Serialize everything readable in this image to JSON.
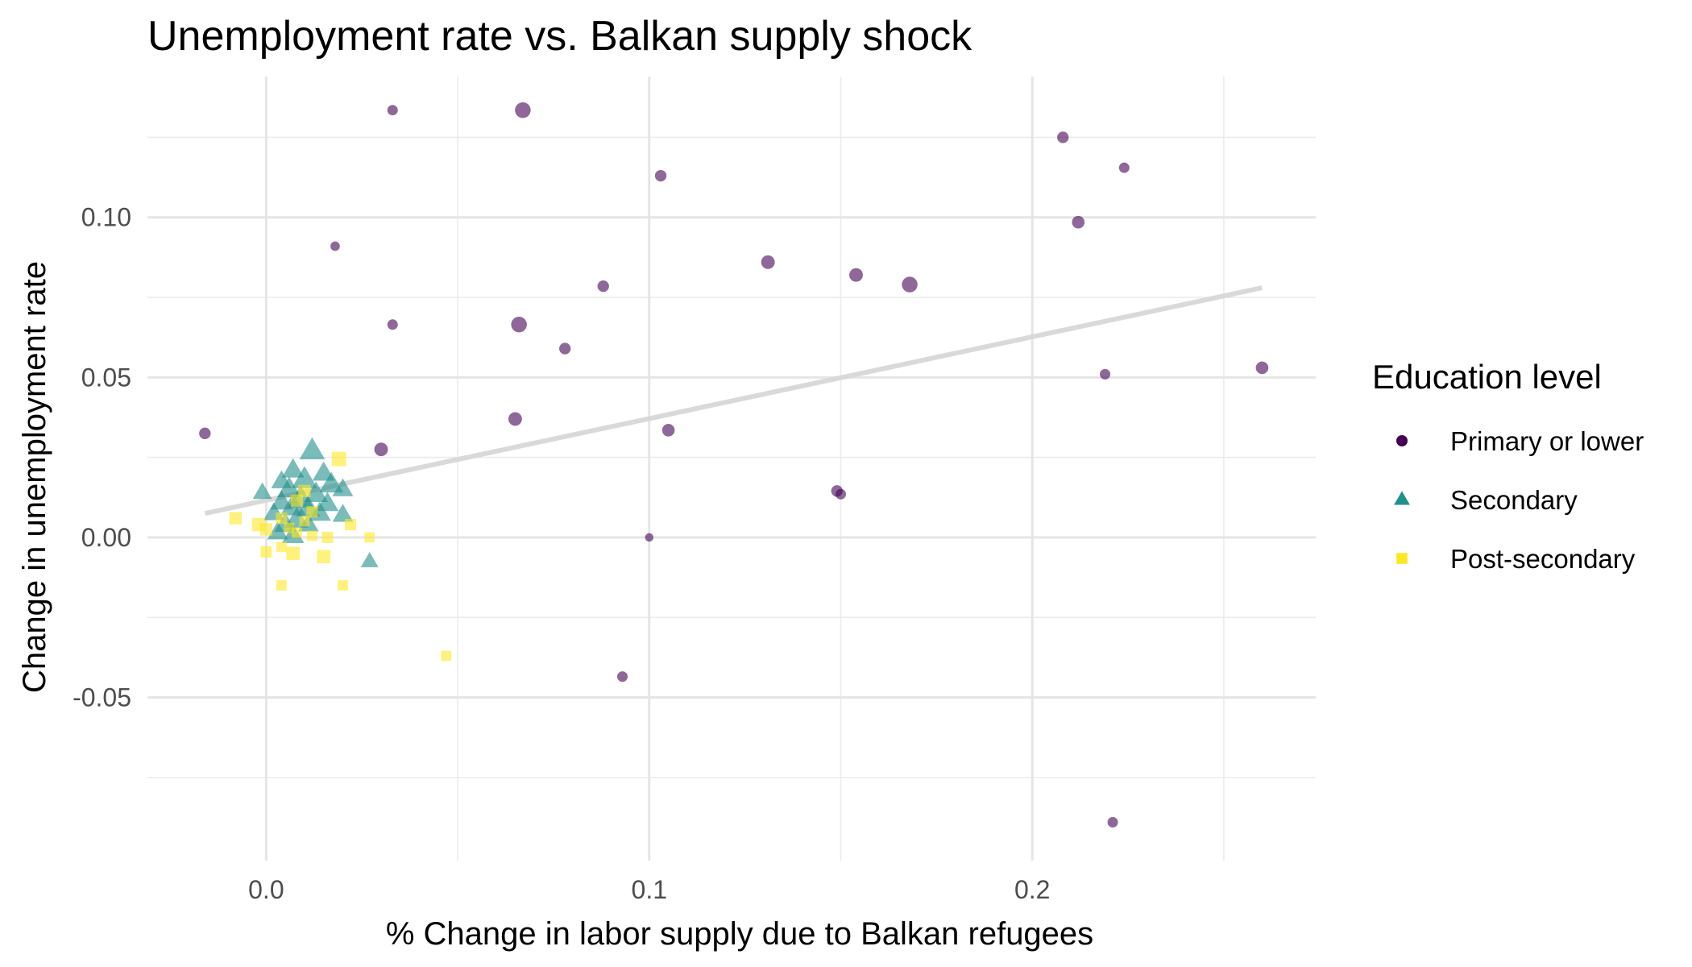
{
  "chart_data": {
    "type": "scatter",
    "title": "Unemployment rate vs. Balkan supply shock",
    "xlabel": "% Change in labor supply due to Balkan refugees",
    "ylabel": "Change in unemployment rate",
    "xlim": [
      -0.031,
      0.274
    ],
    "ylim": [
      -0.101,
      0.144
    ],
    "x_ticks": [
      0.0,
      0.1,
      0.2
    ],
    "x_tick_labels": [
      "0.0",
      "0.1",
      "0.2"
    ],
    "y_ticks": [
      -0.05,
      0.0,
      0.05,
      0.1
    ],
    "y_tick_labels": [
      "-0.05",
      "0.00",
      "0.05",
      "0.10"
    ],
    "grid": true,
    "legend": {
      "title": "Education level",
      "position": "right",
      "entries": [
        {
          "label": "Primary or lower",
          "shape": "circle",
          "color": "#440154"
        },
        {
          "label": "Secondary",
          "shape": "triangle",
          "color": "#21908C"
        },
        {
          "label": "Post-secondary",
          "shape": "square",
          "color": "#FDE725"
        }
      ]
    },
    "trend_line": {
      "x": [
        -0.016,
        0.26
      ],
      "y": [
        0.0075,
        0.078
      ],
      "color": "#d9d9d9"
    },
    "series": [
      {
        "name": "Primary or lower",
        "shape": "circle",
        "color": "#440154",
        "points": [
          {
            "x": 0.033,
            "y": 0.1335,
            "s": 1.0
          },
          {
            "x": 0.067,
            "y": 0.1335,
            "s": 1.5
          },
          {
            "x": 0.103,
            "y": 0.113,
            "s": 1.1
          },
          {
            "x": 0.018,
            "y": 0.091,
            "s": 0.9
          },
          {
            "x": 0.088,
            "y": 0.0785,
            "s": 1.1
          },
          {
            "x": 0.131,
            "y": 0.086,
            "s": 1.3
          },
          {
            "x": 0.154,
            "y": 0.082,
            "s": 1.3
          },
          {
            "x": 0.168,
            "y": 0.079,
            "s": 1.5
          },
          {
            "x": 0.208,
            "y": 0.125,
            "s": 1.1
          },
          {
            "x": 0.224,
            "y": 0.1155,
            "s": 1.0
          },
          {
            "x": 0.212,
            "y": 0.0985,
            "s": 1.2
          },
          {
            "x": 0.033,
            "y": 0.0665,
            "s": 1.0
          },
          {
            "x": 0.066,
            "y": 0.0665,
            "s": 1.5
          },
          {
            "x": 0.078,
            "y": 0.059,
            "s": 1.1
          },
          {
            "x": 0.219,
            "y": 0.051,
            "s": 1.0
          },
          {
            "x": 0.26,
            "y": 0.053,
            "s": 1.2
          },
          {
            "x": -0.016,
            "y": 0.0325,
            "s": 1.1
          },
          {
            "x": 0.065,
            "y": 0.037,
            "s": 1.3
          },
          {
            "x": 0.105,
            "y": 0.0335,
            "s": 1.2
          },
          {
            "x": 0.03,
            "y": 0.0275,
            "s": 1.3
          },
          {
            "x": 0.149,
            "y": 0.0145,
            "s": 1.1
          },
          {
            "x": 0.15,
            "y": 0.0135,
            "s": 1.0
          },
          {
            "x": 0.1,
            "y": 0.0,
            "s": 0.8
          },
          {
            "x": 0.093,
            "y": -0.0435,
            "s": 1.0
          },
          {
            "x": 0.221,
            "y": -0.089,
            "s": 1.0
          }
        ]
      },
      {
        "name": "Secondary",
        "shape": "triangle",
        "color": "#21908C",
        "points": [
          {
            "x": 0.012,
            "y": 0.027,
            "s": 1.6
          },
          {
            "x": 0.007,
            "y": 0.021,
            "s": 1.4
          },
          {
            "x": 0.015,
            "y": 0.02,
            "s": 1.4
          },
          {
            "x": 0.004,
            "y": 0.0175,
            "s": 1.3
          },
          {
            "x": 0.01,
            "y": 0.018,
            "s": 1.6
          },
          {
            "x": 0.017,
            "y": 0.0165,
            "s": 1.5
          },
          {
            "x": 0.02,
            "y": 0.015,
            "s": 1.3
          },
          {
            "x": -0.001,
            "y": 0.014,
            "s": 1.2
          },
          {
            "x": 0.006,
            "y": 0.015,
            "s": 1.5
          },
          {
            "x": 0.013,
            "y": 0.0135,
            "s": 1.5
          },
          {
            "x": 0.009,
            "y": 0.012,
            "s": 1.6
          },
          {
            "x": 0.004,
            "y": 0.011,
            "s": 1.4
          },
          {
            "x": 0.016,
            "y": 0.0105,
            "s": 1.4
          },
          {
            "x": 0.007,
            "y": 0.0095,
            "s": 1.6
          },
          {
            "x": 0.011,
            "y": 0.009,
            "s": 1.5
          },
          {
            "x": 0.002,
            "y": 0.0075,
            "s": 1.3
          },
          {
            "x": 0.014,
            "y": 0.0075,
            "s": 1.4
          },
          {
            "x": 0.02,
            "y": 0.007,
            "s": 1.3
          },
          {
            "x": 0.008,
            "y": 0.0055,
            "s": 1.5
          },
          {
            "x": 0.005,
            "y": 0.004,
            "s": 1.4
          },
          {
            "x": 0.011,
            "y": 0.004,
            "s": 1.3
          },
          {
            "x": 0.003,
            "y": 0.0015,
            "s": 1.3
          },
          {
            "x": 0.007,
            "y": 0.0005,
            "s": 1.4
          },
          {
            "x": 0.027,
            "y": -0.0075,
            "s": 1.1
          }
        ]
      },
      {
        "name": "Post-secondary",
        "shape": "square",
        "color": "#FDE725",
        "points": [
          {
            "x": 0.019,
            "y": 0.0245,
            "s": 1.4
          },
          {
            "x": 0.01,
            "y": 0.0145,
            "s": 1.2
          },
          {
            "x": 0.008,
            "y": 0.0115,
            "s": 1.2
          },
          {
            "x": 0.012,
            "y": 0.008,
            "s": 1.1
          },
          {
            "x": -0.008,
            "y": 0.006,
            "s": 1.2
          },
          {
            "x": 0.004,
            "y": 0.006,
            "s": 1.1
          },
          {
            "x": 0.01,
            "y": 0.005,
            "s": 1.0
          },
          {
            "x": -0.002,
            "y": 0.004,
            "s": 1.3
          },
          {
            "x": 0.006,
            "y": 0.003,
            "s": 1.0
          },
          {
            "x": 0.0,
            "y": 0.0025,
            "s": 1.2
          },
          {
            "x": 0.022,
            "y": 0.004,
            "s": 1.1
          },
          {
            "x": 0.008,
            "y": 0.0015,
            "s": 1.0
          },
          {
            "x": 0.012,
            "y": 0.0005,
            "s": 1.0
          },
          {
            "x": 0.016,
            "y": 0.0,
            "s": 1.1
          },
          {
            "x": 0.027,
            "y": 0.0,
            "s": 1.0
          },
          {
            "x": 0.004,
            "y": -0.003,
            "s": 1.0
          },
          {
            "x": 0.0,
            "y": -0.0045,
            "s": 1.1
          },
          {
            "x": 0.007,
            "y": -0.005,
            "s": 1.3
          },
          {
            "x": 0.015,
            "y": -0.006,
            "s": 1.3
          },
          {
            "x": 0.004,
            "y": -0.015,
            "s": 1.0
          },
          {
            "x": 0.02,
            "y": -0.015,
            "s": 1.0
          },
          {
            "x": 0.047,
            "y": -0.037,
            "s": 1.0
          }
        ]
      }
    ]
  }
}
